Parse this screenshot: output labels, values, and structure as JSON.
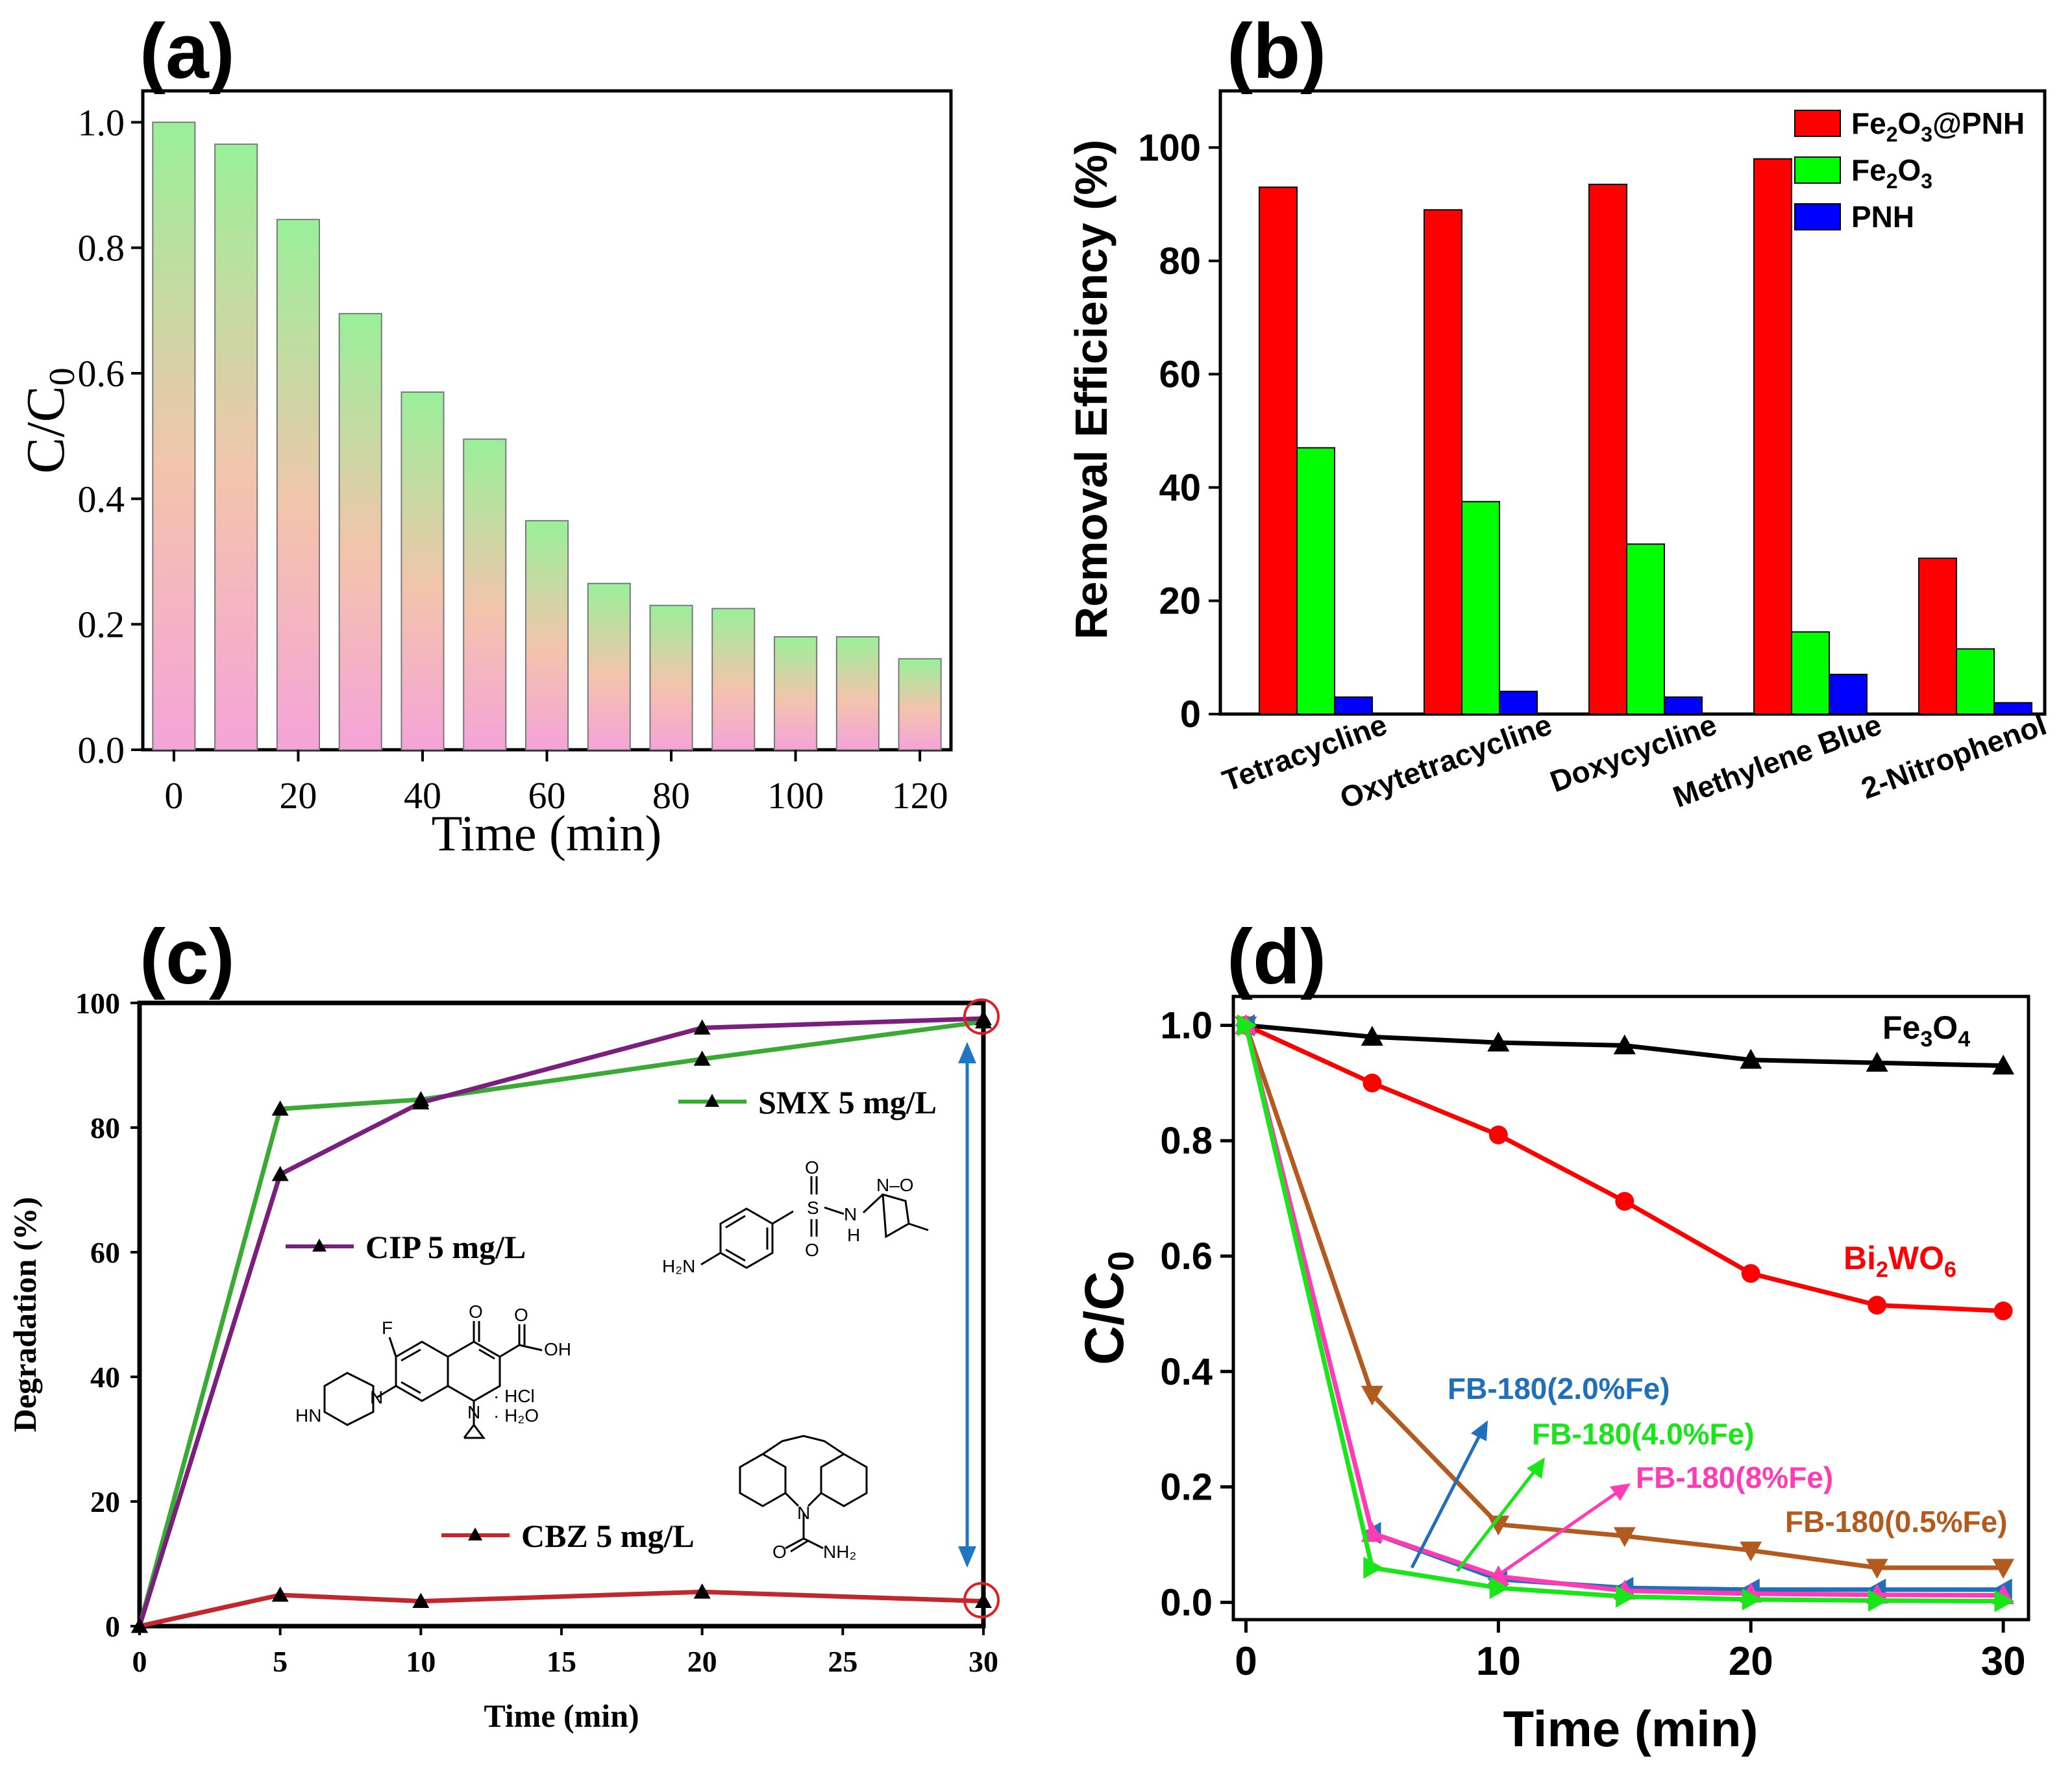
{
  "chart_data": [
    {
      "panel": "(a)",
      "type": "bar",
      "xlabel": "Time (min)",
      "ylabel": "C/C",
      "ylabel_sub": "0",
      "x": [
        0,
        10,
        20,
        30,
        40,
        50,
        60,
        70,
        80,
        90,
        100,
        110,
        120
      ],
      "values": [
        1.0,
        0.965,
        0.845,
        0.695,
        0.57,
        0.495,
        0.365,
        0.265,
        0.23,
        0.225,
        0.18,
        0.18,
        0.145
      ],
      "xlim": [
        -5,
        125
      ],
      "ylim": [
        0,
        1.05
      ],
      "xticks": [
        "0",
        "20",
        "40",
        "60",
        "80",
        "100",
        "120"
      ],
      "yticks": [
        "0.0",
        "0.2",
        "0.4",
        "0.6",
        "0.8",
        "1.0"
      ],
      "bar_gradient": {
        "top": "#99f099",
        "middle": "#f3c4ac",
        "bottom": "#f5a3d8"
      }
    },
    {
      "panel": "(b)",
      "type": "bar",
      "ylabel": "Removal Efficiency (%)",
      "categories": [
        "Tetracycline",
        "Oxytetracycline",
        "Doxycycline",
        "Methylene Blue",
        "2-Nitrophenol"
      ],
      "series": [
        {
          "name": "Fe2O3@PNH",
          "label_parts": [
            "Fe",
            "2",
            "O",
            "3",
            "@PNH"
          ],
          "color": "#ff0000",
          "values": [
            93,
            89,
            93.5,
            98,
            27.5
          ]
        },
        {
          "name": "Fe2O3",
          "label_parts": [
            "Fe",
            "2",
            "O",
            "3",
            ""
          ],
          "color": "#00ff00",
          "values": [
            47,
            37.5,
            30,
            14.5,
            11.5
          ]
        },
        {
          "name": "PNH",
          "label_parts": [
            "PNH",
            "",
            "",
            "",
            ""
          ],
          "color": "#0000ff",
          "values": [
            3,
            4,
            3,
            7,
            2
          ]
        }
      ],
      "ylim": [
        0,
        110
      ],
      "yticks": [
        "0",
        "20",
        "40",
        "60",
        "80",
        "100"
      ],
      "legend": "top-right"
    },
    {
      "panel": "(c)",
      "type": "line",
      "xlabel": "Time (min)",
      "ylabel": "Degradation (%)",
      "x": [
        0,
        5,
        10,
        20,
        30
      ],
      "series": [
        {
          "name": "SMX 5 mg/L",
          "color": "#3aaa35",
          "values": [
            0,
            83,
            84.5,
            91,
            97
          ]
        },
        {
          "name": "CIP 5 mg/L",
          "color": "#7b1f7e",
          "values": [
            0,
            72.5,
            84,
            96,
            97.5
          ]
        },
        {
          "name": "CBZ 5 mg/L",
          "color": "#c0282d",
          "values": [
            0,
            5,
            4,
            5.5,
            4
          ]
        }
      ],
      "xlim": [
        0,
        30
      ],
      "ylim": [
        0,
        100
      ],
      "xticks": [
        "0",
        "5",
        "10",
        "15",
        "20",
        "25",
        "30"
      ],
      "yticks": [
        "0",
        "20",
        "40",
        "60",
        "80",
        "100"
      ],
      "structures": {
        "smx_text": [
          "O",
          "S",
          "O",
          "N",
          "H",
          "H₂N",
          "N–O"
        ],
        "cip_text": [
          "F",
          "O",
          "O",
          "OH",
          "N",
          "N",
          "HN",
          "· HCl",
          "· H₂O"
        ],
        "cbz_text": [
          "N",
          "O",
          "NH₂"
        ]
      }
    },
    {
      "panel": "(d)",
      "type": "line",
      "xlabel": "Time (min)",
      "ylabel": "C/C",
      "ylabel_sub": "0",
      "x": [
        0,
        5,
        10,
        15,
        20,
        25,
        30
      ],
      "series": [
        {
          "name": "Fe3O4",
          "label_parts": [
            "Fe",
            "3",
            "O",
            "4",
            ""
          ],
          "color": "#000000",
          "marker": "triangle-up",
          "values": [
            1.0,
            0.98,
            0.97,
            0.965,
            0.94,
            0.935,
            0.93
          ]
        },
        {
          "name": "Bi2WO6",
          "label_parts": [
            "Bi",
            "2",
            "WO",
            "6",
            ""
          ],
          "color": "#ff0000",
          "marker": "circle",
          "values": [
            1.0,
            0.9,
            0.81,
            0.695,
            0.57,
            0.515,
            0.505
          ]
        },
        {
          "name": "FB-180(2.0%Fe)",
          "label_parts": [
            "FB-180(2.0%Fe)",
            "",
            "",
            "",
            ""
          ],
          "color": "#1f6fba",
          "marker": "triangle-left",
          "values": [
            1.0,
            0.12,
            0.04,
            0.025,
            0.022,
            0.022,
            0.022
          ]
        },
        {
          "name": "FB-180(4.0%Fe)",
          "label_parts": [
            "FB-180(4.0%Fe)",
            "",
            "",
            "",
            ""
          ],
          "color": "#19e619",
          "marker": "triangle-right",
          "values": [
            1.0,
            0.06,
            0.025,
            0.01,
            0.005,
            0.003,
            0.002
          ]
        },
        {
          "name": "FB-180(8%Fe)",
          "label_parts": [
            "FB-180(8%Fe)",
            "",
            "",
            "",
            ""
          ],
          "color": "#ff3cb4",
          "marker": "triangle-up",
          "values": [
            1.0,
            0.12,
            0.045,
            0.02,
            0.015,
            0.013,
            0.012
          ]
        },
        {
          "name": "FB-180(0.5%Fe)",
          "label_parts": [
            "FB-180(0.5%Fe)",
            "",
            "",
            "",
            ""
          ],
          "color": "#b35a1f",
          "marker": "triangle-down",
          "values": [
            1.0,
            0.36,
            0.135,
            0.115,
            0.09,
            0.06,
            0.06
          ]
        }
      ],
      "xlim": [
        -0.5,
        31
      ],
      "ylim": [
        -0.03,
        1.05
      ],
      "xticks": [
        "0",
        "10",
        "20",
        "30"
      ],
      "yticks": [
        "0.0",
        "0.2",
        "0.4",
        "0.6",
        "0.8",
        "1.0"
      ]
    }
  ]
}
